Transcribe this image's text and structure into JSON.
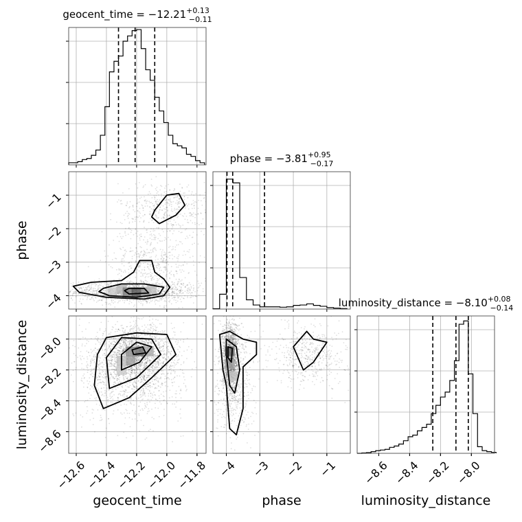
{
  "chart_data": {
    "type": "corner",
    "parameters": [
      {
        "name": "geocent_time",
        "title": "geocent_time = −12.21",
        "title_sup": "+0.13",
        "title_sub": "−0.11",
        "range": [
          -12.65,
          -11.74
        ],
        "ticks": [
          -12.6,
          -12.4,
          -12.2,
          -12.0,
          -11.8
        ],
        "tick_labels": [
          "−12.6",
          "−12.4",
          "−12.2",
          "−12.0",
          "−11.8"
        ],
        "quantiles": [
          -12.32,
          -12.21,
          -12.08
        ],
        "hist_edges": [
          -12.65,
          -12.62,
          -12.59,
          -12.56,
          -12.53,
          -12.5,
          -12.47,
          -12.44,
          -12.41,
          -12.38,
          -12.35,
          -12.32,
          -12.29,
          -12.26,
          -12.23,
          -12.2,
          -12.17,
          -12.14,
          -12.11,
          -12.08,
          -12.05,
          -12.02,
          -11.99,
          -11.96,
          -11.93,
          -11.9,
          -11.87,
          -11.84,
          -11.81,
          -11.78,
          -11.75
        ],
        "hist_counts": [
          2,
          2,
          3,
          5,
          6,
          9,
          14,
          28,
          55,
          88,
          98,
          103,
          117,
          122,
          127,
          128,
          110,
          90,
          80,
          64,
          51,
          40,
          28,
          20,
          18,
          16,
          10,
          8,
          4,
          2
        ],
        "hist_ymax": 130
      },
      {
        "name": "phase",
        "title": "phase = −3.81",
        "title_sup": "+0.95",
        "title_sub": "−0.17",
        "range": [
          -4.4,
          -0.3
        ],
        "ticks": [
          -4,
          -3,
          -2,
          -1
        ],
        "tick_labels": [
          "−4",
          "−3",
          "−2",
          "−1"
        ],
        "quantiles": [
          -3.98,
          -3.81,
          -2.86
        ],
        "hist_edges": [
          -4.4,
          -4.2,
          -4.0,
          -3.8,
          -3.6,
          -3.4,
          -3.2,
          -3.0,
          -2.8,
          -2.6,
          -2.4,
          -2.2,
          -2.0,
          -1.8,
          -1.6,
          -1.4,
          -1.2,
          -1.0,
          -0.8,
          -0.6,
          -0.4
        ],
        "hist_counts": [
          2,
          80,
          700,
          680,
          170,
          50,
          22,
          12,
          12,
          12,
          10,
          12,
          20,
          22,
          28,
          20,
          15,
          8,
          5,
          3
        ],
        "hist_ymax": 740
      },
      {
        "name": "luminosity_distance",
        "title": "luminosity_distance = −8.10",
        "title_sup": "+0.08",
        "title_sub": "−0.14",
        "range": [
          -8.74,
          -7.85
        ],
        "ticks": [
          -8.6,
          -8.4,
          -8.2,
          -8.0
        ],
        "tick_labels": [
          "−8.6",
          "−8.4",
          "−8.2",
          "−8.0"
        ],
        "quantiles": [
          -8.25,
          -8.1,
          -8.02
        ],
        "hist_edges": [
          -8.74,
          -8.71,
          -8.68,
          -8.65,
          -8.62,
          -8.59,
          -8.56,
          -8.53,
          -8.5,
          -8.47,
          -8.44,
          -8.41,
          -8.38,
          -8.35,
          -8.32,
          -8.29,
          -8.26,
          -8.23,
          -8.2,
          -8.17,
          -8.14,
          -8.11,
          -8.08,
          -8.05,
          -8.02,
          -7.99,
          -7.96,
          -7.93,
          -7.9,
          -7.87,
          -7.84
        ],
        "hist_counts": [
          0,
          1,
          2,
          5,
          8,
          10,
          12,
          18,
          22,
          28,
          38,
          50,
          55,
          68,
          78,
          88,
          120,
          145,
          170,
          185,
          220,
          280,
          390,
          400,
          240,
          120,
          20,
          8,
          5,
          3
        ],
        "hist_ymax": 415
      }
    ],
    "pairs": [
      {
        "x": "geocent_time",
        "y": "phase",
        "ylim": [
          -4.4,
          -0.3
        ],
        "ticks_y": [
          -4,
          -3,
          -2,
          -1
        ],
        "tick_labels_y": [
          "−4",
          "−3",
          "−2",
          "−1"
        ],
        "blobs": [
          {
            "cx": -12.22,
            "cy": -3.88,
            "sx": 0.22,
            "sy": 0.16,
            "n": 1300
          },
          {
            "cx": -12.1,
            "cy": -3.0,
            "sx": 0.14,
            "sy": 0.55,
            "n": 500
          },
          {
            "cx": -12.0,
            "cy": -1.4,
            "sx": 0.16,
            "sy": 0.4,
            "n": 450
          }
        ],
        "density_cells": [
          {
            "x": -12.36,
            "y": -3.9,
            "level": 0.25
          },
          {
            "x": -12.3,
            "y": -3.8,
            "level": 0.35
          },
          {
            "x": -12.26,
            "y": -3.9,
            "level": 0.6
          },
          {
            "x": -12.2,
            "y": -3.9,
            "level": 0.8
          },
          {
            "x": -12.14,
            "y": -3.9,
            "level": 0.5
          },
          {
            "x": -12.1,
            "y": -3.8,
            "level": 0.3
          }
        ],
        "contours": [
          [
            [
              -12.62,
              -3.72
            ],
            [
              -12.5,
              -3.6
            ],
            [
              -12.3,
              -3.55
            ],
            [
              -12.22,
              -3.3
            ],
            [
              -12.18,
              -2.95
            ],
            [
              -12.1,
              -2.95
            ],
            [
              -12.08,
              -3.3
            ],
            [
              -12.02,
              -3.5
            ],
            [
              -11.98,
              -3.75
            ],
            [
              -12.02,
              -4.0
            ],
            [
              -12.15,
              -4.1
            ],
            [
              -12.4,
              -4.05
            ],
            [
              -12.58,
              -3.9
            ],
            [
              -12.62,
              -3.72
            ]
          ],
          [
            [
              -12.42,
              -3.78
            ],
            [
              -12.3,
              -3.65
            ],
            [
              -12.15,
              -3.65
            ],
            [
              -12.02,
              -3.75
            ],
            [
              -12.05,
              -3.95
            ],
            [
              -12.2,
              -4.05
            ],
            [
              -12.38,
              -4.0
            ],
            [
              -12.45,
              -3.88
            ],
            [
              -12.42,
              -3.78
            ]
          ],
          [
            [
              -12.25,
              -3.78
            ],
            [
              -12.15,
              -3.78
            ],
            [
              -12.12,
              -3.92
            ],
            [
              -12.25,
              -3.95
            ],
            [
              -12.28,
              -3.85
            ],
            [
              -12.25,
              -3.78
            ]
          ],
          [
            [
              -12.08,
              -1.45
            ],
            [
              -12.0,
              -1.0
            ],
            [
              -11.92,
              -0.95
            ],
            [
              -11.88,
              -1.3
            ],
            [
              -11.94,
              -1.6
            ],
            [
              -12.05,
              -1.85
            ],
            [
              -12.1,
              -1.65
            ],
            [
              -12.08,
              -1.45
            ]
          ]
        ]
      },
      {
        "x": "geocent_time",
        "y": "luminosity_distance",
        "ylim": [
          -8.74,
          -7.85
        ],
        "ticks_y": [
          -8.6,
          -8.4,
          -8.2,
          -8.0
        ],
        "tick_labels_y": [
          "−8.6",
          "−8.4",
          "−8.2",
          "−8.0"
        ],
        "blobs": [
          {
            "cx": -12.2,
            "cy": -8.1,
            "sx": 0.12,
            "sy": 0.09,
            "n": 1500
          },
          {
            "cx": -12.25,
            "cy": -8.22,
            "sx": 0.18,
            "sy": 0.15,
            "n": 1200
          }
        ],
        "density_cells": [
          {
            "x": -12.3,
            "y": -8.2,
            "level": 0.25
          },
          {
            "x": -12.24,
            "y": -8.14,
            "level": 0.45
          },
          {
            "x": -12.18,
            "y": -8.08,
            "level": 0.7
          },
          {
            "x": -12.24,
            "y": -8.08,
            "level": 0.55
          },
          {
            "x": -12.12,
            "y": -8.08,
            "level": 0.4
          },
          {
            "x": -12.3,
            "y": -8.14,
            "level": 0.3
          }
        ],
        "contours": [
          [
            [
              -12.46,
              -8.1
            ],
            [
              -12.4,
              -7.99
            ],
            [
              -12.2,
              -7.96
            ],
            [
              -12.0,
              -7.97
            ],
            [
              -11.94,
              -8.1
            ],
            [
              -12.1,
              -8.25
            ],
            [
              -12.25,
              -8.38
            ],
            [
              -12.42,
              -8.45
            ],
            [
              -12.48,
              -8.3
            ],
            [
              -12.46,
              -8.1
            ]
          ],
          [
            [
              -12.4,
              -8.12
            ],
            [
              -12.3,
              -7.99
            ],
            [
              -12.1,
              -8.0
            ],
            [
              -12.04,
              -8.1
            ],
            [
              -12.2,
              -8.25
            ],
            [
              -12.38,
              -8.32
            ],
            [
              -12.4,
              -8.12
            ]
          ],
          [
            [
              -12.3,
              -8.1
            ],
            [
              -12.2,
              -8.02
            ],
            [
              -12.1,
              -8.05
            ],
            [
              -12.18,
              -8.15
            ],
            [
              -12.3,
              -8.2
            ],
            [
              -12.3,
              -8.1
            ]
          ],
          [
            [
              -12.23,
              -8.07
            ],
            [
              -12.16,
              -8.05
            ],
            [
              -12.14,
              -8.09
            ],
            [
              -12.22,
              -8.1
            ],
            [
              -12.23,
              -8.07
            ]
          ]
        ]
      },
      {
        "x": "phase",
        "y": "luminosity_distance",
        "ylim": [
          -8.74,
          -7.85
        ],
        "ticks_y": [
          -8.6,
          -8.4,
          -8.2,
          -8.0
        ],
        "tick_labels_y": [
          "−8.6",
          "−8.4",
          "−8.2",
          "−8.0"
        ],
        "blobs": [
          {
            "cx": -3.88,
            "cy": -8.12,
            "sx": 0.12,
            "sy": 0.12,
            "n": 1500
          },
          {
            "cx": -3.75,
            "cy": -8.3,
            "sx": 0.3,
            "sy": 0.18,
            "n": 500
          },
          {
            "cx": -1.5,
            "cy": -8.1,
            "sx": 0.55,
            "sy": 0.1,
            "n": 500
          }
        ],
        "density_cells": [
          {
            "x": -3.9,
            "y": -8.08,
            "level": 0.7
          },
          {
            "x": -3.9,
            "y": -8.16,
            "level": 0.45
          },
          {
            "x": -3.8,
            "y": -8.24,
            "level": 0.3
          }
        ],
        "contours": [
          [
            [
              -4.2,
              -7.97
            ],
            [
              -3.9,
              -7.95
            ],
            [
              -3.5,
              -8.0
            ],
            [
              -3.1,
              -8.02
            ],
            [
              -3.1,
              -8.1
            ],
            [
              -3.5,
              -8.18
            ],
            [
              -3.5,
              -8.45
            ],
            [
              -3.7,
              -8.62
            ],
            [
              -3.9,
              -8.58
            ],
            [
              -4.0,
              -8.3
            ],
            [
              -4.1,
              -8.2
            ],
            [
              -4.2,
              -7.97
            ]
          ],
          [
            [
              -4.0,
              -8.0
            ],
            [
              -3.7,
              -8.05
            ],
            [
              -3.6,
              -8.2
            ],
            [
              -3.75,
              -8.35
            ],
            [
              -3.9,
              -8.3
            ],
            [
              -4.0,
              -8.1
            ],
            [
              -4.0,
              -8.0
            ]
          ],
          [
            [
              -3.95,
              -8.05
            ],
            [
              -3.82,
              -8.06
            ],
            [
              -3.85,
              -8.15
            ],
            [
              -3.95,
              -8.12
            ],
            [
              -3.95,
              -8.05
            ]
          ],
          [
            [
              -2.0,
              -8.05
            ],
            [
              -1.6,
              -7.95
            ],
            [
              -1.4,
              -8.0
            ],
            [
              -1.0,
              -8.02
            ],
            [
              -1.4,
              -8.15
            ],
            [
              -1.7,
              -8.2
            ],
            [
              -2.0,
              -8.05
            ]
          ]
        ]
      }
    ]
  }
}
